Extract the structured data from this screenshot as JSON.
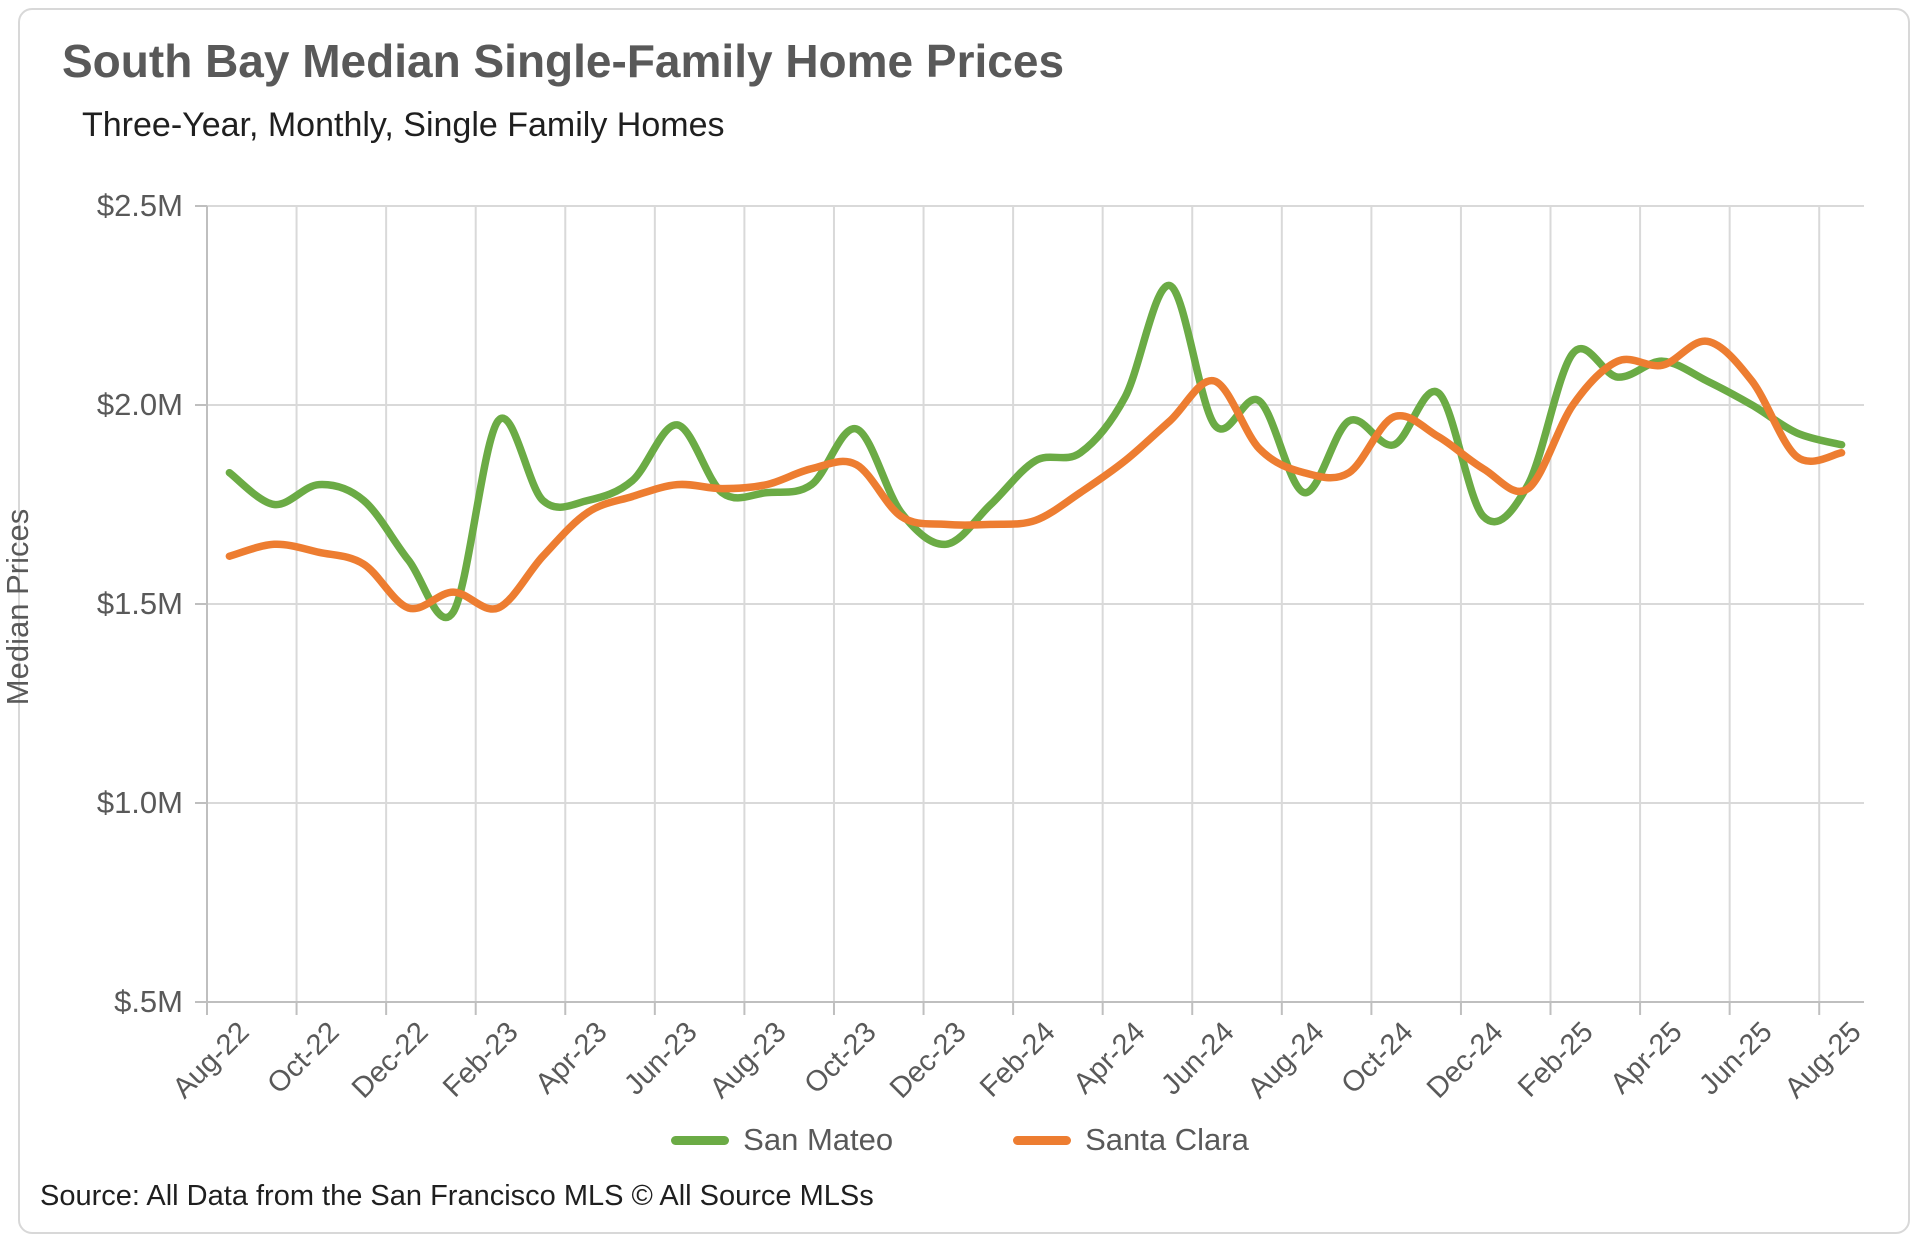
{
  "header": {
    "title": "South Bay Median Single-Family Home Prices",
    "subtitle": "Three-Year, Monthly, Single Family Homes"
  },
  "source_note": "Source: All Data from the San Francisco MLS © All Source MLSs",
  "colors": {
    "san_mateo_green": "#6BAB45",
    "santa_clara_orange": "#ED7D31",
    "axis_text": "#595959",
    "gridline": "#d9d9d9",
    "axis_line": "#bfbfbf"
  },
  "chart_data": {
    "type": "line",
    "title": "South Bay Median Single-Family Home Prices",
    "subtitle": "Three-Year, Monthly, Single Family Homes",
    "xlabel": "",
    "ylabel": "Median Prices",
    "ylim": [
      0.5,
      2.5
    ],
    "grid": true,
    "legend_position": "bottom",
    "smooth": true,
    "y_ticks": [
      {
        "value": 0.5,
        "label": "$.5M"
      },
      {
        "value": 1.0,
        "label": "$1.0M"
      },
      {
        "value": 1.5,
        "label": "$1.5M"
      },
      {
        "value": 2.0,
        "label": "$2.0M"
      },
      {
        "value": 2.5,
        "label": "$2.5M"
      }
    ],
    "x_categories": [
      "Aug-22",
      "Sep-22",
      "Oct-22",
      "Nov-22",
      "Dec-22",
      "Jan-23",
      "Feb-23",
      "Mar-23",
      "Apr-23",
      "May-23",
      "Jun-23",
      "Jul-23",
      "Aug-23",
      "Sep-23",
      "Oct-23",
      "Nov-23",
      "Dec-23",
      "Jan-24",
      "Feb-24",
      "Mar-24",
      "Apr-24",
      "May-24",
      "Jun-24",
      "Jul-24",
      "Aug-24",
      "Sep-24",
      "Oct-24",
      "Nov-24",
      "Dec-24",
      "Jan-25",
      "Feb-25",
      "Mar-25",
      "Apr-25",
      "May-25",
      "Jun-25",
      "Jul-25",
      "Aug-25"
    ],
    "x_tick_every": 2,
    "series": [
      {
        "name": "San Mateo",
        "color": "#6BAB45",
        "unit": "millions_usd",
        "values": [
          1.83,
          1.75,
          1.8,
          1.76,
          1.61,
          1.48,
          1.96,
          1.76,
          1.76,
          1.81,
          1.95,
          1.78,
          1.78,
          1.8,
          1.94,
          1.73,
          1.65,
          1.75,
          1.86,
          1.88,
          2.02,
          2.3,
          1.95,
          2.01,
          1.78,
          1.96,
          1.9,
          2.03,
          1.72,
          1.8,
          2.13,
          2.07,
          2.11,
          2.06,
          2.0,
          1.93,
          1.9
        ]
      },
      {
        "name": "Santa Clara",
        "color": "#ED7D31",
        "unit": "millions_usd",
        "values": [
          1.62,
          1.65,
          1.63,
          1.6,
          1.49,
          1.53,
          1.49,
          1.62,
          1.73,
          1.77,
          1.8,
          1.79,
          1.8,
          1.84,
          1.85,
          1.72,
          1.7,
          1.7,
          1.71,
          1.78,
          1.86,
          1.96,
          2.06,
          1.89,
          1.83,
          1.83,
          1.97,
          1.92,
          1.84,
          1.79,
          2.0,
          2.11,
          2.1,
          2.16,
          2.06,
          1.87,
          1.88
        ]
      }
    ]
  }
}
